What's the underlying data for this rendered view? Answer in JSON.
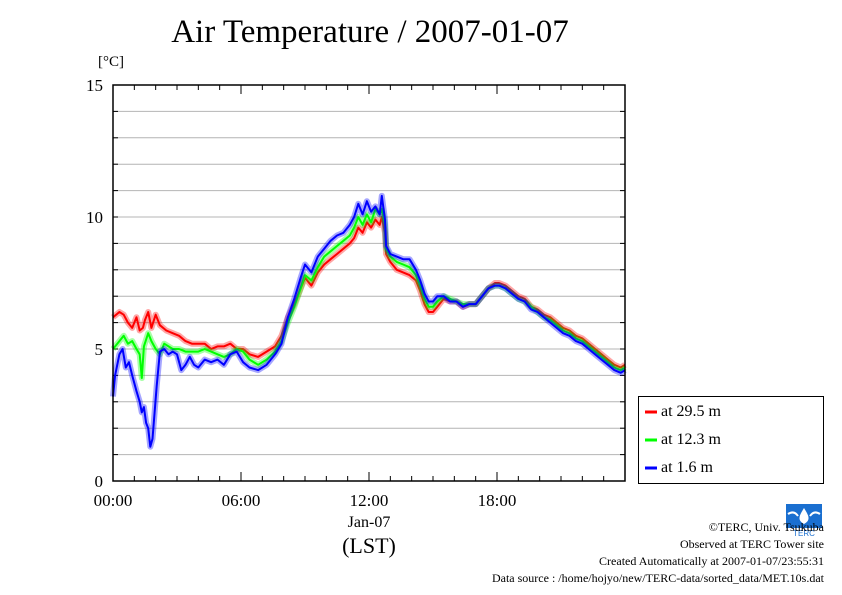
{
  "chart_data": {
    "type": "line",
    "title": "Air Temperature / 2007-01-07",
    "ylabel": "[°C]",
    "xlabel": "(LST)",
    "date_label": "Jan-07",
    "xlim": [
      0,
      24
    ],
    "ylim": [
      0,
      15
    ],
    "x_ticks": [
      {
        "value": 0,
        "label": "00:00"
      },
      {
        "value": 6,
        "label": "06:00"
      },
      {
        "value": 12,
        "label": "12:00"
      },
      {
        "value": 18,
        "label": "18:00"
      }
    ],
    "y_ticks": [
      {
        "value": 0,
        "label": "0"
      },
      {
        "value": 5,
        "label": "5"
      },
      {
        "value": 10,
        "label": "10"
      },
      {
        "value": 15,
        "label": "15"
      }
    ],
    "grid": "horizontal every 1 °C",
    "legend_position": "bottom-right, outside plot",
    "series": [
      {
        "name": "at 29.5 m",
        "color": "#ff0000",
        "points": [
          [
            0,
            6.2
          ],
          [
            0.3,
            6.4
          ],
          [
            0.5,
            6.3
          ],
          [
            0.7,
            6.0
          ],
          [
            0.9,
            5.8
          ],
          [
            1.1,
            6.2
          ],
          [
            1.25,
            5.7
          ],
          [
            1.4,
            5.8
          ],
          [
            1.5,
            6.1
          ],
          [
            1.65,
            6.4
          ],
          [
            1.8,
            5.8
          ],
          [
            2.0,
            6.3
          ],
          [
            2.2,
            5.9
          ],
          [
            2.5,
            5.7
          ],
          [
            2.8,
            5.6
          ],
          [
            3.1,
            5.5
          ],
          [
            3.4,
            5.3
          ],
          [
            3.7,
            5.2
          ],
          [
            4.0,
            5.2
          ],
          [
            4.3,
            5.2
          ],
          [
            4.6,
            5.0
          ],
          [
            4.9,
            5.1
          ],
          [
            5.2,
            5.1
          ],
          [
            5.5,
            5.2
          ],
          [
            5.8,
            5.0
          ],
          [
            6.1,
            5.0
          ],
          [
            6.4,
            4.8
          ],
          [
            6.8,
            4.7
          ],
          [
            7.2,
            4.9
          ],
          [
            7.6,
            5.1
          ],
          [
            7.9,
            5.5
          ],
          [
            8.2,
            6.2
          ],
          [
            8.5,
            6.7
          ],
          [
            8.8,
            7.3
          ],
          [
            9.0,
            7.7
          ],
          [
            9.3,
            7.4
          ],
          [
            9.6,
            7.9
          ],
          [
            9.9,
            8.2
          ],
          [
            10.2,
            8.4
          ],
          [
            10.5,
            8.6
          ],
          [
            10.8,
            8.8
          ],
          [
            11.1,
            9.0
          ],
          [
            11.3,
            9.2
          ],
          [
            11.5,
            9.6
          ],
          [
            11.7,
            9.4
          ],
          [
            11.9,
            9.8
          ],
          [
            12.1,
            9.6
          ],
          [
            12.3,
            9.9
          ],
          [
            12.5,
            9.7
          ],
          [
            12.6,
            10.0
          ],
          [
            12.75,
            9.4
          ],
          [
            12.8,
            8.6
          ],
          [
            13.0,
            8.3
          ],
          [
            13.3,
            8.0
          ],
          [
            13.6,
            7.9
          ],
          [
            13.9,
            7.8
          ],
          [
            14.2,
            7.6
          ],
          [
            14.4,
            7.2
          ],
          [
            14.6,
            6.7
          ],
          [
            14.8,
            6.4
          ],
          [
            15.0,
            6.4
          ],
          [
            15.2,
            6.6
          ],
          [
            15.5,
            6.9
          ],
          [
            15.8,
            6.8
          ],
          [
            16.1,
            6.8
          ],
          [
            16.4,
            6.6
          ],
          [
            16.7,
            6.7
          ],
          [
            17.0,
            6.7
          ],
          [
            17.3,
            7.0
          ],
          [
            17.6,
            7.3
          ],
          [
            17.9,
            7.5
          ],
          [
            18.1,
            7.5
          ],
          [
            18.4,
            7.4
          ],
          [
            18.7,
            7.2
          ],
          [
            19.0,
            7.0
          ],
          [
            19.3,
            6.9
          ],
          [
            19.6,
            6.6
          ],
          [
            19.9,
            6.5
          ],
          [
            20.2,
            6.3
          ],
          [
            20.5,
            6.2
          ],
          [
            20.8,
            6.0
          ],
          [
            21.1,
            5.8
          ],
          [
            21.4,
            5.7
          ],
          [
            21.7,
            5.5
          ],
          [
            22.0,
            5.4
          ],
          [
            22.3,
            5.2
          ],
          [
            22.6,
            5.0
          ],
          [
            22.9,
            4.8
          ],
          [
            23.2,
            4.6
          ],
          [
            23.5,
            4.4
          ],
          [
            23.8,
            4.3
          ],
          [
            24.0,
            4.4
          ]
        ]
      },
      {
        "name": "at 12.3 m",
        "color": "#00ff00",
        "points": [
          [
            0,
            5.0
          ],
          [
            0.3,
            5.3
          ],
          [
            0.5,
            5.5
          ],
          [
            0.7,
            5.2
          ],
          [
            0.9,
            5.3
          ],
          [
            1.1,
            5.0
          ],
          [
            1.25,
            4.8
          ],
          [
            1.35,
            3.9
          ],
          [
            1.45,
            5.1
          ],
          [
            1.65,
            5.6
          ],
          [
            1.8,
            5.3
          ],
          [
            2.0,
            5.0
          ],
          [
            2.2,
            4.8
          ],
          [
            2.4,
            5.2
          ],
          [
            2.6,
            5.1
          ],
          [
            2.8,
            5.0
          ],
          [
            3.1,
            5.0
          ],
          [
            3.4,
            4.9
          ],
          [
            3.7,
            4.9
          ],
          [
            4.0,
            4.9
          ],
          [
            4.3,
            5.0
          ],
          [
            4.6,
            4.9
          ],
          [
            4.9,
            4.8
          ],
          [
            5.2,
            4.7
          ],
          [
            5.5,
            4.8
          ],
          [
            5.8,
            5.0
          ],
          [
            6.1,
            4.9
          ],
          [
            6.4,
            4.6
          ],
          [
            6.8,
            4.4
          ],
          [
            7.2,
            4.6
          ],
          [
            7.6,
            4.9
          ],
          [
            7.9,
            5.3
          ],
          [
            8.2,
            6.0
          ],
          [
            8.5,
            6.6
          ],
          [
            8.8,
            7.3
          ],
          [
            9.0,
            7.8
          ],
          [
            9.3,
            7.6
          ],
          [
            9.6,
            8.1
          ],
          [
            9.9,
            8.5
          ],
          [
            10.2,
            8.7
          ],
          [
            10.5,
            8.9
          ],
          [
            10.8,
            9.1
          ],
          [
            11.1,
            9.3
          ],
          [
            11.3,
            9.6
          ],
          [
            11.5,
            10.0
          ],
          [
            11.7,
            9.7
          ],
          [
            11.9,
            10.1
          ],
          [
            12.1,
            9.8
          ],
          [
            12.3,
            10.3
          ],
          [
            12.5,
            10.1
          ],
          [
            12.6,
            10.3
          ],
          [
            12.75,
            9.7
          ],
          [
            12.8,
            8.8
          ],
          [
            13.0,
            8.5
          ],
          [
            13.3,
            8.3
          ],
          [
            13.6,
            8.2
          ],
          [
            13.9,
            8.1
          ],
          [
            14.2,
            7.8
          ],
          [
            14.4,
            7.4
          ],
          [
            14.6,
            6.9
          ],
          [
            14.8,
            6.6
          ],
          [
            15.0,
            6.6
          ],
          [
            15.2,
            6.8
          ],
          [
            15.5,
            7.0
          ],
          [
            15.8,
            6.9
          ],
          [
            16.1,
            6.8
          ],
          [
            16.4,
            6.7
          ],
          [
            16.7,
            6.7
          ],
          [
            17.0,
            6.7
          ],
          [
            17.3,
            7.0
          ],
          [
            17.6,
            7.3
          ],
          [
            17.9,
            7.4
          ],
          [
            18.1,
            7.4
          ],
          [
            18.4,
            7.3
          ],
          [
            18.7,
            7.1
          ],
          [
            19.0,
            6.9
          ],
          [
            19.3,
            6.8
          ],
          [
            19.6,
            6.6
          ],
          [
            19.9,
            6.4
          ],
          [
            20.2,
            6.2
          ],
          [
            20.5,
            6.1
          ],
          [
            20.8,
            5.9
          ],
          [
            21.1,
            5.7
          ],
          [
            21.4,
            5.6
          ],
          [
            21.7,
            5.4
          ],
          [
            22.0,
            5.3
          ],
          [
            22.3,
            5.1
          ],
          [
            22.6,
            4.9
          ],
          [
            22.9,
            4.7
          ],
          [
            23.2,
            4.5
          ],
          [
            23.5,
            4.3
          ],
          [
            23.8,
            4.2
          ],
          [
            24.0,
            4.3
          ]
        ]
      },
      {
        "name": "at 1.6 m",
        "color": "#0000ff",
        "points": [
          [
            0,
            3.2
          ],
          [
            0.1,
            4.0
          ],
          [
            0.3,
            4.8
          ],
          [
            0.45,
            5.0
          ],
          [
            0.6,
            4.3
          ],
          [
            0.75,
            4.5
          ],
          [
            0.9,
            4.0
          ],
          [
            1.1,
            3.4
          ],
          [
            1.25,
            3.0
          ],
          [
            1.35,
            2.6
          ],
          [
            1.45,
            2.8
          ],
          [
            1.55,
            2.2
          ],
          [
            1.65,
            2.0
          ],
          [
            1.75,
            1.3
          ],
          [
            1.85,
            1.6
          ],
          [
            1.95,
            2.6
          ],
          [
            2.05,
            3.6
          ],
          [
            2.2,
            4.9
          ],
          [
            2.4,
            5.0
          ],
          [
            2.6,
            4.8
          ],
          [
            2.8,
            4.9
          ],
          [
            3.0,
            4.8
          ],
          [
            3.2,
            4.2
          ],
          [
            3.4,
            4.4
          ],
          [
            3.6,
            4.7
          ],
          [
            3.8,
            4.4
          ],
          [
            4.0,
            4.3
          ],
          [
            4.3,
            4.6
          ],
          [
            4.6,
            4.5
          ],
          [
            4.9,
            4.6
          ],
          [
            5.2,
            4.4
          ],
          [
            5.5,
            4.8
          ],
          [
            5.8,
            4.9
          ],
          [
            6.1,
            4.5
          ],
          [
            6.4,
            4.3
          ],
          [
            6.8,
            4.2
          ],
          [
            7.2,
            4.4
          ],
          [
            7.6,
            4.8
          ],
          [
            7.9,
            5.2
          ],
          [
            8.2,
            6.2
          ],
          [
            8.5,
            6.9
          ],
          [
            8.8,
            7.7
          ],
          [
            9.0,
            8.2
          ],
          [
            9.3,
            7.9
          ],
          [
            9.6,
            8.5
          ],
          [
            9.9,
            8.8
          ],
          [
            10.2,
            9.1
          ],
          [
            10.5,
            9.3
          ],
          [
            10.8,
            9.4
          ],
          [
            11.1,
            9.7
          ],
          [
            11.3,
            10.0
          ],
          [
            11.5,
            10.5
          ],
          [
            11.7,
            10.1
          ],
          [
            11.9,
            10.6
          ],
          [
            12.1,
            10.2
          ],
          [
            12.3,
            10.4
          ],
          [
            12.5,
            10.1
          ],
          [
            12.6,
            10.8
          ],
          [
            12.75,
            9.9
          ],
          [
            12.8,
            8.9
          ],
          [
            13.0,
            8.6
          ],
          [
            13.3,
            8.5
          ],
          [
            13.6,
            8.4
          ],
          [
            13.9,
            8.4
          ],
          [
            14.2,
            8.0
          ],
          [
            14.4,
            7.6
          ],
          [
            14.6,
            7.1
          ],
          [
            14.8,
            6.8
          ],
          [
            15.0,
            6.8
          ],
          [
            15.2,
            7.0
          ],
          [
            15.5,
            7.0
          ],
          [
            15.8,
            6.8
          ],
          [
            16.1,
            6.8
          ],
          [
            16.4,
            6.6
          ],
          [
            16.7,
            6.7
          ],
          [
            17.0,
            6.7
          ],
          [
            17.3,
            7.0
          ],
          [
            17.6,
            7.3
          ],
          [
            17.9,
            7.4
          ],
          [
            18.1,
            7.4
          ],
          [
            18.4,
            7.3
          ],
          [
            18.7,
            7.1
          ],
          [
            19.0,
            6.9
          ],
          [
            19.3,
            6.8
          ],
          [
            19.6,
            6.5
          ],
          [
            19.9,
            6.4
          ],
          [
            20.2,
            6.2
          ],
          [
            20.5,
            6.0
          ],
          [
            20.8,
            5.8
          ],
          [
            21.1,
            5.6
          ],
          [
            21.4,
            5.5
          ],
          [
            21.7,
            5.3
          ],
          [
            22.0,
            5.2
          ],
          [
            22.3,
            5.0
          ],
          [
            22.6,
            4.8
          ],
          [
            22.9,
            4.6
          ],
          [
            23.2,
            4.4
          ],
          [
            23.5,
            4.2
          ],
          [
            23.8,
            4.1
          ],
          [
            24.0,
            4.2
          ]
        ]
      }
    ]
  },
  "credits": {
    "copyright": "©TERC, Univ. Tsukuba",
    "observed": "Observed at TERC Tower site",
    "created": "Created Automatically at 2007-01-07/23:55:31",
    "source": "Data source : /home/hojyo/new/TERC-data/sorted_data/MET.10s.dat"
  },
  "logo": {
    "text": "TERC",
    "color": "#1a6fd0"
  }
}
